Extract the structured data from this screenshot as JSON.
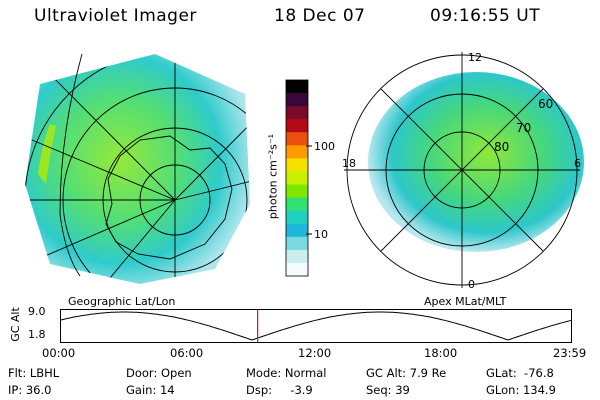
{
  "header": {
    "instrument": "Ultraviolet Imager",
    "date": "18 Dec 07",
    "time": "09:16:55 UT"
  },
  "colorbar": {
    "unit_label": "photon cm⁻²s⁻¹",
    "ticks": [
      "100",
      "10"
    ],
    "colors": [
      "#000000",
      "#3a0838",
      "#7a0a2a",
      "#b40a18",
      "#e8500c",
      "#ff9a00",
      "#f5e000",
      "#c8f000",
      "#7fe800",
      "#30e070",
      "#20d0c0",
      "#20b8d8",
      "#7ad8e0",
      "#c8eef0",
      "#f4fbfc"
    ]
  },
  "geo_panel": {
    "caption": "Geographic Lat/Lon"
  },
  "apex_panel": {
    "caption": "Apex MLat/MLT",
    "mlt_labels": {
      "top": "12",
      "left": "18",
      "right": "6",
      "bottom": "0"
    },
    "mlat_labels": [
      "60",
      "70",
      "80"
    ]
  },
  "altitude_strip": {
    "ylabel": "GC Alt",
    "y_ticks": [
      "9.0",
      "1.8"
    ],
    "x_ticks": [
      "00:00",
      "06:00",
      "12:00",
      "18:00",
      "23:59"
    ],
    "current_time_fraction": 0.386
  },
  "info": {
    "filter": "Flt: LBHL",
    "ip": "IP: 36.0",
    "door": "Door: Open",
    "gain": "Gain: 14",
    "mode": "Mode: Normal",
    "dsp": "Dsp:     -3.9",
    "gc_alt": "GC Alt: 7.9 Re",
    "seq": "Seq: 39",
    "glat": "GLat:  -76.8",
    "glon": "GLon: 134.9"
  }
}
